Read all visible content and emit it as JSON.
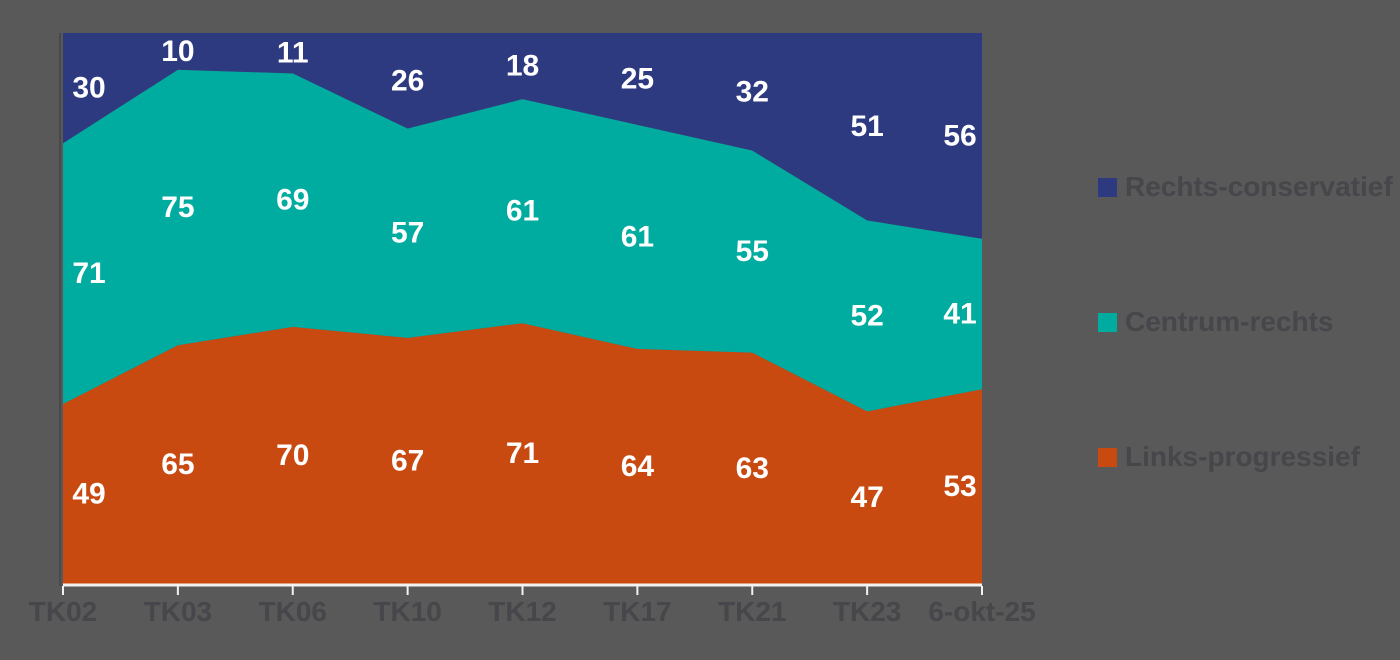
{
  "background_color": "#595959",
  "text_muted_color": "#46464b",
  "chart_data": {
    "type": "area",
    "stacked": true,
    "total_per_column": 150,
    "title": "",
    "xlabel": "",
    "ylabel": "",
    "ylim": [
      0,
      150
    ],
    "grid": false,
    "legend_position": "right",
    "categories": [
      "TK02",
      "TK03",
      "TK06",
      "TK10",
      "TK12",
      "TK17",
      "TK21",
      "TK23",
      "6-okt-25"
    ],
    "series": [
      {
        "name": "Links-progressief",
        "color": "#c84a10",
        "values": [
          49,
          65,
          70,
          67,
          71,
          64,
          63,
          47,
          53
        ]
      },
      {
        "name": "Centrum-rechts",
        "color": "#00aba0",
        "values": [
          71,
          75,
          69,
          57,
          61,
          61,
          55,
          52,
          41
        ]
      },
      {
        "name": "Rechts-conservatief",
        "color": "#2e3a80",
        "values": [
          30,
          10,
          11,
          26,
          18,
          25,
          32,
          51,
          56
        ]
      }
    ],
    "value_label_color": "#ffffff",
    "axis_line_color": "#f2f2f2",
    "tick_color": "#f2f2f2",
    "xtick_label_color": "#46464b"
  },
  "legend": {
    "items": [
      {
        "label": "Rechts-conservatief",
        "color": "#2e3a80"
      },
      {
        "label": "Centrum-rechts",
        "color": "#00aba0"
      },
      {
        "label": "Links-progressief",
        "color": "#c84a10"
      }
    ]
  }
}
